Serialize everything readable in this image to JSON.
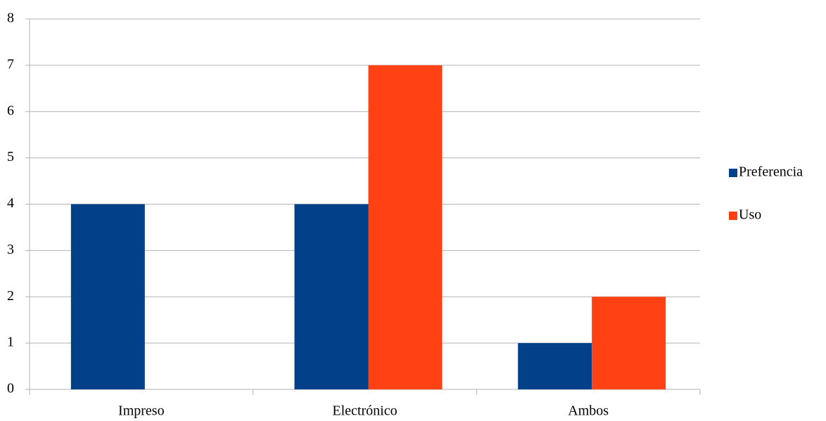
{
  "chart_data": {
    "type": "bar",
    "categories": [
      "Impreso",
      "Electrónico",
      "Ambos"
    ],
    "series": [
      {
        "name": "Preferencia",
        "color": "#02408a",
        "values": [
          4,
          4,
          1
        ]
      },
      {
        "name": "Uso",
        "color": "#ff4113",
        "values": [
          0,
          7,
          2
        ]
      }
    ],
    "ylim": [
      0,
      8
    ],
    "yticks": [
      0,
      1,
      2,
      3,
      4,
      5,
      6,
      7,
      8
    ],
    "grid": true,
    "legend": "right"
  }
}
